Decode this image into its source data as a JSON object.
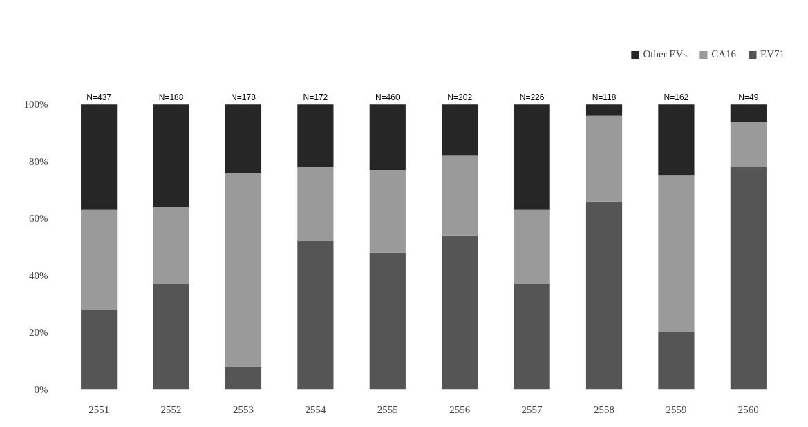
{
  "chart_data": {
    "type": "bar",
    "stacked": true,
    "categories": [
      "2551",
      "2552",
      "2553",
      "2554",
      "2555",
      "2556",
      "2557",
      "2558",
      "2559",
      "2560"
    ],
    "series": [
      {
        "name": "EV71",
        "color": "#555555",
        "values": [
          28,
          37,
          8,
          52,
          48,
          54,
          37,
          66,
          20,
          78
        ]
      },
      {
        "name": "CA16",
        "color": "#9a9a9a",
        "values": [
          35,
          27,
          68,
          26,
          29,
          28,
          26,
          30,
          55,
          16
        ]
      },
      {
        "name": "Other EVs",
        "color": "#262626",
        "values": [
          37,
          36,
          24,
          22,
          23,
          18,
          37,
          4,
          25,
          6
        ]
      }
    ],
    "ylim": [
      0,
      100
    ],
    "yticks": [
      {
        "value": 0,
        "label": "0%"
      },
      {
        "value": 20,
        "label": "20%"
      },
      {
        "value": 40,
        "label": "40%"
      },
      {
        "value": 60,
        "label": "60%"
      },
      {
        "value": 80,
        "label": "80%"
      },
      {
        "value": 100,
        "label": "100%"
      }
    ],
    "grid": false,
    "legend": "top right",
    "annotations": [
      {
        "text": "N=437",
        "x": "2551",
        "y": 100
      },
      {
        "text": "N=188",
        "x": "2552",
        "y": 100
      },
      {
        "text": "N=178",
        "x": "2553",
        "y": 100
      },
      {
        "text": "N=172",
        "x": "2554",
        "y": 100
      },
      {
        "text": "N=460",
        "x": "2555",
        "y": 100
      },
      {
        "text": "N=202",
        "x": "2556",
        "y": 100
      },
      {
        "text": "N=226",
        "x": "2557",
        "y": 100
      },
      {
        "text": "N=118",
        "x": "2558",
        "y": 100
      },
      {
        "text": "N=162",
        "x": "2559",
        "y": 100
      },
      {
        "text": "N=49",
        "x": "2560",
        "y": 100
      }
    ]
  }
}
